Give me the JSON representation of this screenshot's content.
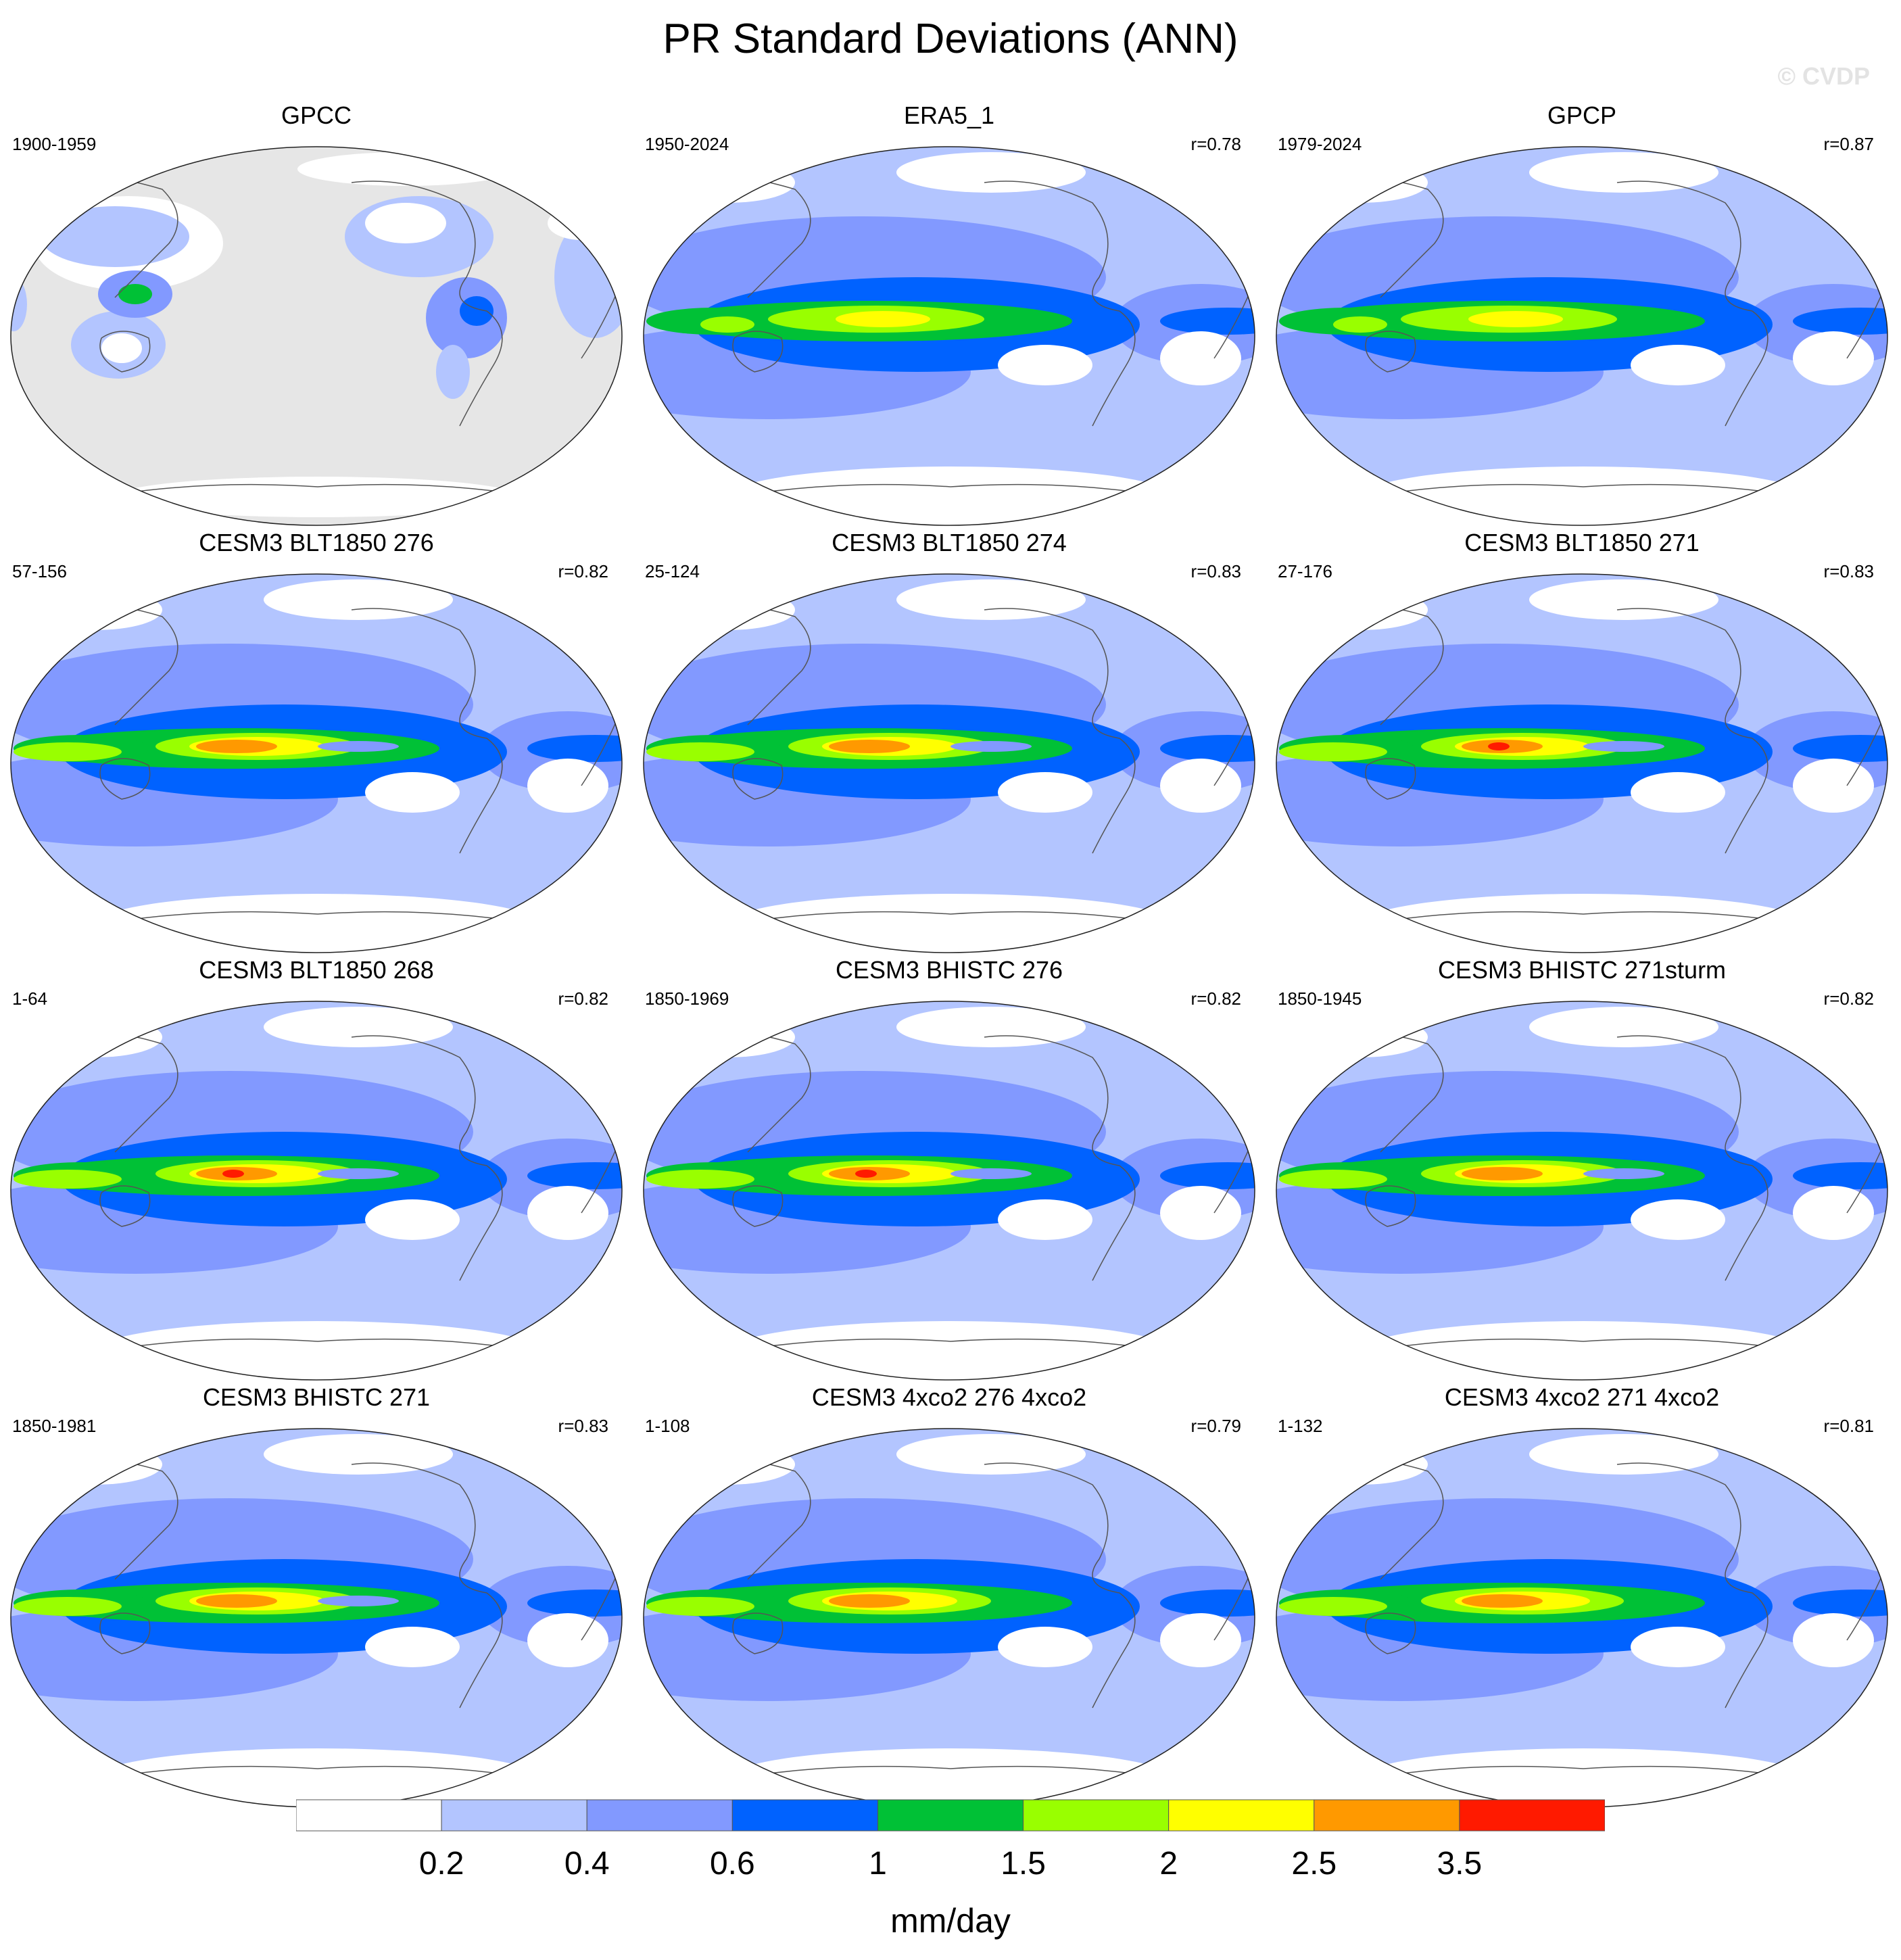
{
  "title": "PR Standard Deviations (ANN)",
  "watermark": "© CVDP",
  "map_colors": {
    "land_missing": "#e6e6e6",
    "coast": "#555555",
    "outline": "#222222"
  },
  "colorbar": {
    "colors": [
      "#ffffff",
      "#b3c5ff",
      "#8299ff",
      "#0062ff",
      "#00c136",
      "#99ff00",
      "#ffff00",
      "#ff9900",
      "#ff1a00"
    ],
    "labels": [
      "0.2",
      "0.4",
      "0.6",
      "1",
      "1.5",
      "2",
      "2.5",
      "3.5"
    ],
    "units": "mm/day"
  },
  "panels": [
    {
      "title": "GPCC",
      "years": "1900-1959",
      "r": "",
      "style": "gpcc",
      "peak": 0
    },
    {
      "title": "ERA5_1",
      "years": "1950-2024",
      "r": "r=0.78",
      "style": "obs",
      "peak": 6
    },
    {
      "title": "GPCP",
      "years": "1979-2024",
      "r": "r=0.87",
      "style": "obs",
      "peak": 6
    },
    {
      "title": "CESM3 BLT1850 276",
      "years": "57-156",
      "r": "r=0.82",
      "style": "model",
      "peak": 7
    },
    {
      "title": "CESM3 BLT1850 274",
      "years": "25-124",
      "r": "r=0.83",
      "style": "model",
      "peak": 7
    },
    {
      "title": "CESM3 BLT1850 271",
      "years": "27-176",
      "r": "r=0.83",
      "style": "model",
      "peak": 8
    },
    {
      "title": "CESM3 BLT1850 268",
      "years": "1-64",
      "r": "r=0.82",
      "style": "model",
      "peak": 8
    },
    {
      "title": "CESM3 BHISTC 276",
      "years": "1850-1969",
      "r": "r=0.82",
      "style": "model",
      "peak": 8
    },
    {
      "title": "CESM3 BHISTC 271sturm",
      "years": "1850-1945",
      "r": "r=0.82",
      "style": "model",
      "peak": 7
    },
    {
      "title": "CESM3 BHISTC 271",
      "years": "1850-1981",
      "r": "r=0.83",
      "style": "model",
      "peak": 7
    },
    {
      "title": "CESM3 4xco2 276 4xco2",
      "years": "1-108",
      "r": "r=0.79",
      "style": "model4x",
      "peak": 7
    },
    {
      "title": "CESM3 4xco2 271 4xco2",
      "years": "1-132",
      "r": "r=0.81",
      "style": "model4x",
      "peak": 7
    }
  ]
}
